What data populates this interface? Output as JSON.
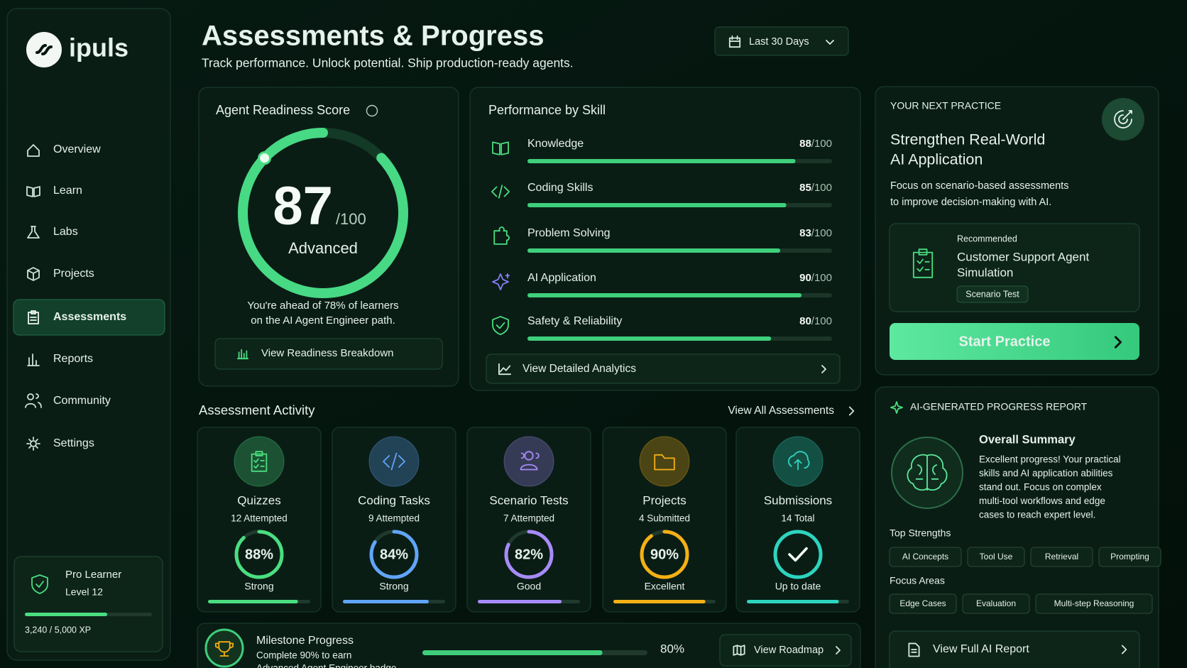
{
  "brand": "ipuls",
  "nav": [
    {
      "label": "Overview"
    },
    {
      "label": "Learn"
    },
    {
      "label": "Labs"
    },
    {
      "label": "Projects"
    },
    {
      "label": "Assessments",
      "active": true
    },
    {
      "label": "Reports"
    },
    {
      "label": "Community"
    },
    {
      "label": "Settings"
    }
  ],
  "profile": {
    "tier": "Pro Learner",
    "level": "Level 12",
    "xp": 3240,
    "xp_max": 5000,
    "xp_label": "3,240 / 5,000 XP"
  },
  "header": {
    "title": "Assessments & Progress",
    "subtitle": "Track performance. Unlock potential. Ship production-ready agents.",
    "date_range": "Last 30 Days"
  },
  "readiness": {
    "title": "Agent Readiness Score",
    "score": 87,
    "max": 100,
    "max_label": "/100",
    "level": "Advanced",
    "note": [
      "You're ahead of 78% of learners",
      "on the AI Agent Engineer path."
    ],
    "button": "View Readiness Breakdown"
  },
  "skills": {
    "title": "Performance by Skill",
    "max": 100,
    "out_of": "/100",
    "items": [
      {
        "name": "Knowledge",
        "score": 88
      },
      {
        "name": "Coding Skills",
        "score": 85
      },
      {
        "name": "Problem Solving",
        "score": 83
      },
      {
        "name": "AI Application",
        "score": 90
      },
      {
        "name": "Safety & Reliability",
        "score": 80
      }
    ],
    "button": "View Detailed Analytics"
  },
  "activity": {
    "title": "Assessment Activity",
    "link": "View All Assessments",
    "cards": [
      {
        "name": "Quizzes",
        "detail": "12 Attempted",
        "score": 88,
        "score_label": "88%",
        "status": "Strong",
        "color": "#4ade80"
      },
      {
        "name": "Coding Tasks",
        "detail": "9 Attempted",
        "score": 84,
        "score_label": "84%",
        "status": "Strong",
        "color": "#60a5fa"
      },
      {
        "name": "Scenario Tests",
        "detail": "7 Attempted",
        "score": 82,
        "score_label": "82%",
        "status": "Good",
        "color": "#a78bfa"
      },
      {
        "name": "Projects",
        "detail": "4 Submitted",
        "score": 90,
        "score_label": "90%",
        "status": "Excellent",
        "color": "#f5b014"
      },
      {
        "name": "Submissions",
        "detail": "14 Total",
        "status": "Up to date",
        "color": "#2dd4bf"
      }
    ]
  },
  "milestone": {
    "title": "Milestone Progress",
    "desc": [
      "Complete 90% to earn",
      "Advanced Agent Engineer badge"
    ],
    "progress": 80,
    "progress_label": "80%",
    "button": "View Roadmap"
  },
  "next_practice": {
    "eyebrow": "YOUR NEXT PRACTICE",
    "title": [
      "Strengthen Real-World",
      "AI Application"
    ],
    "desc": [
      "Focus on scenario-based assessments",
      "to improve decision-making with AI."
    ],
    "recommended": {
      "tag": "Recommended",
      "title": [
        "Customer Support Agent",
        "Simulation"
      ],
      "type": "Scenario Test"
    },
    "button": "Start Practice"
  },
  "report": {
    "eyebrow": "AI-GENERATED PROGRESS REPORT",
    "summary_title": "Overall Summary",
    "summary": [
      "Excellent progress! Your practical",
      "skills and AI application abilities",
      "stand out. Focus on complex",
      "multi-tool workflows and edge",
      "cases to reach expert level."
    ],
    "strengths_title": "Top Strengths",
    "strengths": [
      "AI Concepts",
      "Tool Use",
      "Retrieval",
      "Prompting"
    ],
    "focus_title": "Focus Areas",
    "focus": [
      "Edge Cases",
      "Evaluation",
      "Multi-step Reasoning"
    ],
    "button": "View Full AI Report"
  }
}
